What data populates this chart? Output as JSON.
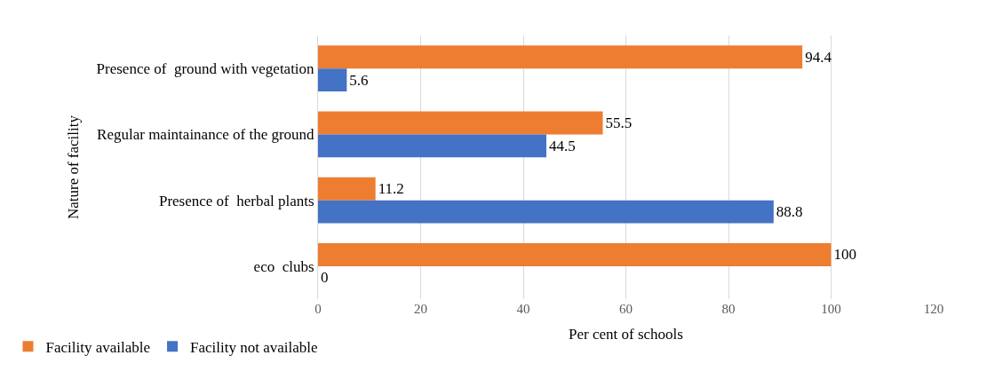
{
  "chart_data": {
    "type": "bar",
    "orientation": "horizontal",
    "categories": [
      "Presence of  ground with vegetation",
      "Regular maintainance of the ground",
      "Presence of  herbal plants",
      "eco  clubs"
    ],
    "series": [
      {
        "name": "Facility available",
        "color": "#ed7d31",
        "values": [
          94.4,
          55.5,
          11.2,
          100
        ]
      },
      {
        "name": "Facility not available",
        "color": "#4472c4",
        "values": [
          5.6,
          44.5,
          88.8,
          0
        ]
      }
    ],
    "xlabel": "Per cent of schools",
    "ylabel": "Nature of facility",
    "xlim": [
      0,
      120
    ],
    "xticks": [
      0,
      20,
      40,
      60,
      80,
      100,
      120
    ],
    "grid": "x",
    "legend": "bottom left",
    "data_labels": true
  }
}
